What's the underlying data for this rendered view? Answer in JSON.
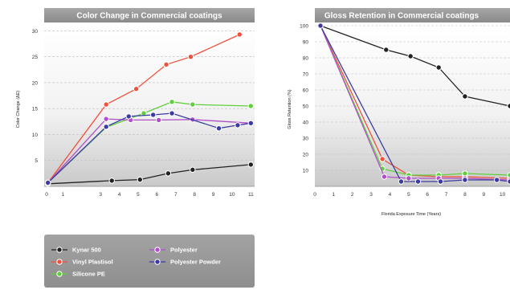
{
  "chart_data": [
    {
      "type": "line",
      "title": "Color Change in Commercial coatings",
      "xlabel": "",
      "ylabel": "Color Change (ΔE)",
      "xlim": [
        0,
        11.2
      ],
      "ylim": [
        0,
        31
      ],
      "xticks": [
        "0",
        "1",
        "3",
        "4",
        "5",
        "6",
        "7",
        "8",
        "9",
        "10",
        "11"
      ],
      "yticks": [
        "5",
        "10",
        "15",
        "20",
        "25",
        "30"
      ],
      "series": [
        {
          "name": "Kynar 500",
          "color": "#222222",
          "points": [
            [
              0.2,
              0.5
            ],
            [
              3.6,
              1.1
            ],
            [
              5.1,
              1.3
            ],
            [
              6.6,
              2.5
            ],
            [
              7.9,
              3.2
            ],
            [
              11,
              4.2
            ]
          ]
        },
        {
          "name": "Vinyl Plastisol",
          "color": "#f0503c",
          "points": [
            [
              0.2,
              0.7
            ],
            [
              3.3,
              15.8
            ],
            [
              4.9,
              18.8
            ],
            [
              6.5,
              23.5
            ],
            [
              7.8,
              25.0
            ],
            [
              10.4,
              29.3
            ]
          ]
        },
        {
          "name": "Silicone PE",
          "color": "#5fd03c",
          "points": [
            [
              0.2,
              0.7
            ],
            [
              3.3,
              11.4
            ],
            [
              5.3,
              14.1
            ],
            [
              6.8,
              16.3
            ],
            [
              7.9,
              15.8
            ],
            [
              11,
              15.5
            ]
          ]
        },
        {
          "name": "Polyester",
          "color": "#b050c8",
          "points": [
            [
              0.2,
              0.7
            ],
            [
              3.3,
              13.0
            ],
            [
              4.6,
              12.8
            ],
            [
              6.1,
              12.8
            ],
            [
              7.9,
              12.9
            ],
            [
              11,
              12.2
            ]
          ]
        },
        {
          "name": "Polyester Powder",
          "color": "#3c3ca0",
          "points": [
            [
              0.2,
              0.7
            ],
            [
              3.3,
              11.5
            ],
            [
              4.5,
              13.5
            ],
            [
              5.8,
              13.8
            ],
            [
              6.8,
              14.1
            ],
            [
              9.3,
              11.2
            ],
            [
              10.3,
              11.8
            ],
            [
              11,
              12.2
            ]
          ]
        }
      ]
    },
    {
      "type": "line",
      "title": "Gloss Retention in Commercial coatings",
      "xlabel": "Florida Exposure Time  (Years)",
      "ylabel": "Gloss Retention (%)",
      "xlim": [
        0,
        10.4
      ],
      "ylim": [
        0,
        100
      ],
      "xticks": [
        "0",
        "1",
        "2",
        "3",
        "4",
        "5",
        "6",
        "7",
        "8",
        "9",
        "10"
      ],
      "yticks": [
        "10",
        "20",
        "30",
        "40",
        "50",
        "60",
        "70",
        "80",
        "90",
        "100"
      ],
      "series": [
        {
          "name": "Kynar 500",
          "color": "#222222",
          "points": [
            [
              0.3,
              100
            ],
            [
              3.8,
              85
            ],
            [
              5.1,
              81
            ],
            [
              6.6,
              74
            ],
            [
              8.0,
              56
            ],
            [
              10.4,
              50
            ]
          ]
        },
        {
          "name": "Vinyl Plastisol",
          "color": "#f0503c",
          "points": [
            [
              0.3,
              100
            ],
            [
              3.6,
              17
            ],
            [
              5.0,
              7
            ],
            [
              6.6,
              6
            ],
            [
              8.0,
              6
            ],
            [
              10.4,
              5
            ]
          ]
        },
        {
          "name": "Silicone PE",
          "color": "#5fd03c",
          "points": [
            [
              0.3,
              100
            ],
            [
              3.6,
              11
            ],
            [
              5.0,
              7
            ],
            [
              6.6,
              7
            ],
            [
              8.0,
              8
            ],
            [
              10.4,
              7
            ]
          ]
        },
        {
          "name": "Polyester",
          "color": "#b050c8",
          "points": [
            [
              0.3,
              100
            ],
            [
              3.7,
              6
            ],
            [
              5.0,
              5
            ],
            [
              6.6,
              5
            ],
            [
              8.0,
              5
            ],
            [
              10.4,
              4
            ]
          ]
        },
        {
          "name": "Polyester Powder",
          "color": "#3c3ca0",
          "points": [
            [
              0.3,
              100
            ],
            [
              4.6,
              3
            ],
            [
              5.5,
              3
            ],
            [
              6.7,
              3
            ],
            [
              8.0,
              4
            ],
            [
              9.7,
              4
            ],
            [
              10.4,
              3
            ]
          ]
        }
      ]
    }
  ],
  "legend": {
    "placement": "bottom-left",
    "items": [
      {
        "label": "Kynar 500",
        "color": "#222222"
      },
      {
        "label": "Vinyl Plastisol",
        "color": "#f0503c"
      },
      {
        "label": "Silicone PE",
        "color": "#5fd03c"
      },
      {
        "label": "Polyester",
        "color": "#b050c8"
      },
      {
        "label": "Polyester Powder",
        "color": "#3c3ca0"
      }
    ]
  }
}
